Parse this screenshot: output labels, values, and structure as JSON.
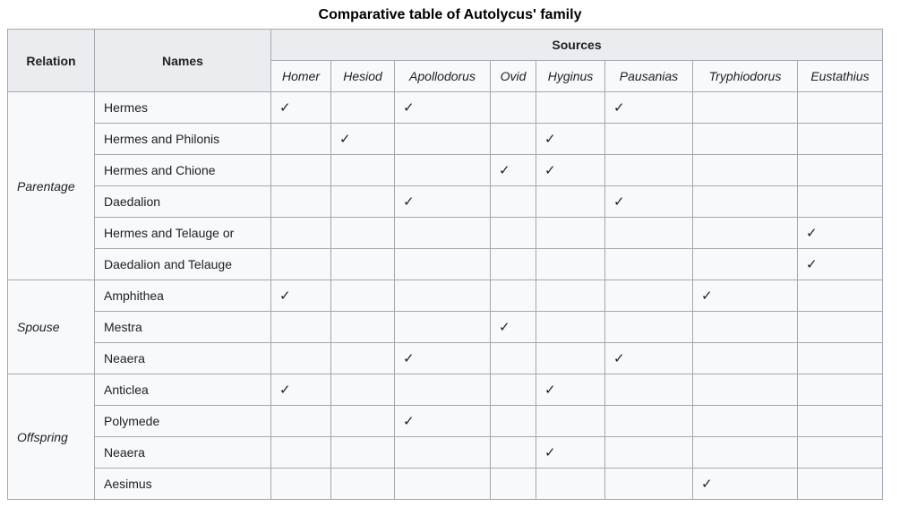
{
  "title": "Comparative table of Autolycus' family",
  "table": {
    "header": {
      "relation_label": "Relation",
      "names_label": "Names",
      "sources_label": "Sources",
      "sources": [
        "Homer",
        "Hesiod",
        "Apollodorus",
        "Ovid",
        "Hyginus",
        "Pausanias",
        "Tryphiodorus",
        "Eustathius"
      ]
    },
    "check_glyph": "✓",
    "groups": [
      {
        "relation": "Parentage",
        "rows": [
          {
            "name": "Hermes",
            "checks": [
              "Homer",
              "Apollodorus",
              "Pausanias"
            ]
          },
          {
            "name": "Hermes and Philonis",
            "checks": [
              "Hesiod",
              "Hyginus"
            ]
          },
          {
            "name": "Hermes and Chione",
            "checks": [
              "Ovid",
              "Hyginus"
            ]
          },
          {
            "name": "Daedalion",
            "checks": [
              "Apollodorus",
              "Pausanias"
            ]
          },
          {
            "name": "Hermes and Telauge or",
            "checks": [
              "Eustathius"
            ]
          },
          {
            "name": "Daedalion and Telauge",
            "checks": [
              "Eustathius"
            ]
          }
        ]
      },
      {
        "relation": "Spouse",
        "rows": [
          {
            "name": "Amphithea",
            "checks": [
              "Homer",
              "Tryphiodorus"
            ]
          },
          {
            "name": "Mestra",
            "checks": [
              "Ovid"
            ]
          },
          {
            "name": "Neaera",
            "checks": [
              "Apollodorus",
              "Pausanias"
            ]
          }
        ]
      },
      {
        "relation": "Offspring",
        "rows": [
          {
            "name": "Anticlea",
            "checks": [
              "Homer",
              "Hyginus"
            ]
          },
          {
            "name": "Polymede",
            "checks": [
              "Apollodorus"
            ]
          },
          {
            "name": "Neaera",
            "checks": [
              "Hyginus"
            ]
          },
          {
            "name": "Aesimus",
            "checks": [
              "Tryphiodorus"
            ]
          }
        ]
      }
    ]
  },
  "colors": {
    "header_background": "#eaecf0",
    "cell_background": "#f8f9fa",
    "border": "#a2a9b1",
    "text": "#202122",
    "page_background": "#ffffff"
  }
}
